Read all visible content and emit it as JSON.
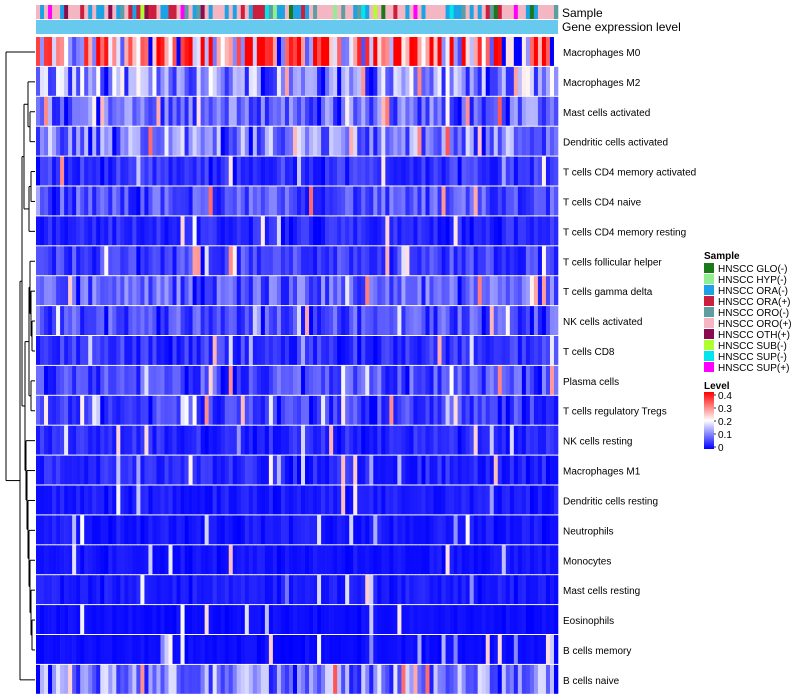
{
  "chart_data": {
    "type": "heatmap",
    "title": "",
    "annotation_rows": [
      "Sample",
      "Gene expression level"
    ],
    "rows": [
      "Macrophages M0",
      "Macrophages M2",
      "Mast cells activated",
      "Dendritic cells activated",
      "T cells CD4 memory activated",
      "T cells CD4 naive",
      "T cells CD4 memory resting",
      "T cells follicular helper",
      "T cells gamma delta",
      "NK cells activated",
      "T cells CD8",
      "Plasma cells",
      "T cells regulatory  Tregs",
      "NK cells resting",
      "Macrophages M1",
      "Dendritic cells resting",
      "Neutrophils",
      "Monocytes",
      "Mast cells resting",
      "Eosinophils",
      "B cells memory",
      "B cells naive"
    ],
    "row_mean_levels": [
      0.28,
      0.12,
      0.08,
      0.1,
      0.04,
      0.06,
      0.03,
      0.05,
      0.07,
      0.06,
      0.04,
      0.06,
      0.05,
      0.03,
      0.03,
      0.02,
      0.02,
      0.015,
      0.02,
      0.01,
      0.01,
      0.1
    ],
    "n_samples": 130,
    "legend_sample": {
      "title": "Sample",
      "entries": [
        {
          "label": "HNSCC GLO(-)",
          "color": "#1a7a1a"
        },
        {
          "label": "HNSCC HYP(-)",
          "color": "#90ee90"
        },
        {
          "label": "HNSCC ORA(-)",
          "color": "#1ba3e6"
        },
        {
          "label": "HNSCC ORA(+)",
          "color": "#cc1f3d"
        },
        {
          "label": "HNSCC ORO(-)",
          "color": "#5f9ea0"
        },
        {
          "label": "HNSCC ORO(+)",
          "color": "#f4b6c2"
        },
        {
          "label": "HNSCC OTH(+)",
          "color": "#8b0a50"
        },
        {
          "label": "HNSCC SUB(-)",
          "color": "#adff2f"
        },
        {
          "label": "HNSCC SUP(-)",
          "color": "#00e5ee"
        },
        {
          "label": "HNSCC SUP(+)",
          "color": "#ff00ff"
        }
      ]
    },
    "legend_level": {
      "title": "Level",
      "ticks": [
        "0.4",
        "0.3",
        "0.2",
        "0.1",
        "0"
      ],
      "range": [
        0,
        0.4
      ]
    },
    "colors": {
      "low": "#0000ff",
      "mid": "#ffffff",
      "high": "#ff0000",
      "expression_bar": "#67c9ee"
    }
  }
}
